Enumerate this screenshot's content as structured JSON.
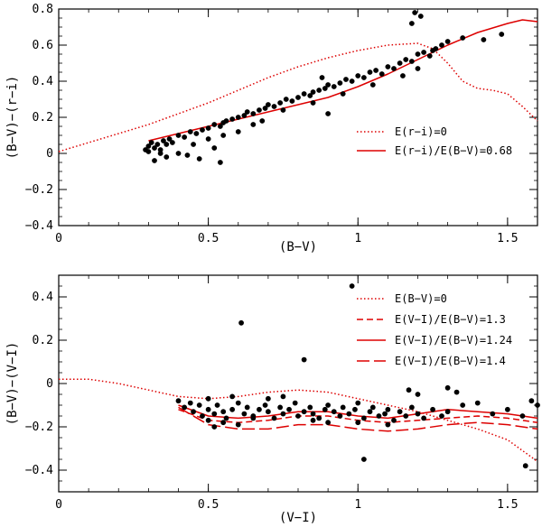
{
  "chart_data": [
    {
      "type": "scatter",
      "xlabel": "(B−V)",
      "ylabel": "(B−V)−(r−i)",
      "xlim": [
        0,
        1.6
      ],
      "ylim": [
        -0.4,
        0.8
      ],
      "xticks": [
        0,
        0.5,
        1,
        1.5
      ],
      "xtick_labels": [
        "0",
        "0.5",
        "1",
        "1.5"
      ],
      "yticks": [
        -0.4,
        -0.2,
        0,
        0.2,
        0.4,
        0.6,
        0.8
      ],
      "ytick_labels": [
        "−0.4",
        "−0.2",
        "0",
        "0.2",
        "0.4",
        "0.6",
        "0.8"
      ],
      "legend_position": "right",
      "series": [
        {
          "name": "E(r−i)=0",
          "style": "dotted",
          "color": "#dd0000",
          "x": [
            0.0,
            0.1,
            0.2,
            0.3,
            0.4,
            0.5,
            0.6,
            0.7,
            0.8,
            0.9,
            1.0,
            1.1,
            1.2,
            1.25,
            1.3,
            1.35,
            1.4,
            1.45,
            1.5,
            1.55,
            1.6
          ],
          "y": [
            0.01,
            0.06,
            0.11,
            0.16,
            0.22,
            0.28,
            0.35,
            0.42,
            0.48,
            0.53,
            0.57,
            0.6,
            0.61,
            0.58,
            0.5,
            0.4,
            0.36,
            0.35,
            0.33,
            0.26,
            0.18
          ]
        },
        {
          "name": "E(r−i)/E(B−V)=0.68",
          "style": "solid",
          "color": "#dd0000",
          "x": [
            0.3,
            0.4,
            0.5,
            0.6,
            0.7,
            0.8,
            0.9,
            1.0,
            1.1,
            1.2,
            1.3,
            1.4,
            1.5,
            1.55,
            1.6
          ],
          "y": [
            0.07,
            0.11,
            0.15,
            0.19,
            0.23,
            0.27,
            0.31,
            0.37,
            0.44,
            0.52,
            0.6,
            0.67,
            0.72,
            0.74,
            0.73
          ]
        },
        {
          "name": "stars",
          "style": "points",
          "color": "#000000",
          "x": [
            0.29,
            0.3,
            0.3,
            0.31,
            0.32,
            0.33,
            0.34,
            0.35,
            0.36,
            0.37,
            0.38,
            0.4,
            0.42,
            0.44,
            0.46,
            0.48,
            0.5,
            0.52,
            0.54,
            0.55,
            0.56,
            0.58,
            0.6,
            0.62,
            0.63,
            0.65,
            0.67,
            0.69,
            0.7,
            0.72,
            0.74,
            0.76,
            0.78,
            0.8,
            0.82,
            0.84,
            0.85,
            0.87,
            0.89,
            0.9,
            0.92,
            0.94,
            0.96,
            0.98,
            1.0,
            1.02,
            1.04,
            1.06,
            1.08,
            1.1,
            1.12,
            1.14,
            1.16,
            1.18,
            1.2,
            1.22,
            1.24,
            1.26,
            1.28,
            1.3,
            1.35,
            1.42,
            1.48,
            0.32,
            0.36,
            0.4,
            0.45,
            0.5,
            0.55,
            0.6,
            0.65,
            0.75,
            0.85,
            0.95,
            1.05,
            1.15,
            1.2,
            0.34,
            0.43,
            0.52,
            0.47,
            0.54,
            0.68,
            0.9,
            0.88,
            1.21,
            1.18,
            1.19,
            1.25
          ],
          "y": [
            0.02,
            0.04,
            0.01,
            0.06,
            0.03,
            0.05,
            0.02,
            0.07,
            0.05,
            0.08,
            0.06,
            0.1,
            0.09,
            0.12,
            0.11,
            0.13,
            0.14,
            0.16,
            0.15,
            0.17,
            0.18,
            0.19,
            0.2,
            0.21,
            0.23,
            0.22,
            0.24,
            0.25,
            0.27,
            0.26,
            0.28,
            0.3,
            0.29,
            0.31,
            0.33,
            0.32,
            0.34,
            0.35,
            0.36,
            0.38,
            0.37,
            0.39,
            0.41,
            0.4,
            0.43,
            0.42,
            0.45,
            0.46,
            0.44,
            0.48,
            0.47,
            0.5,
            0.52,
            0.51,
            0.55,
            0.56,
            0.54,
            0.58,
            0.6,
            0.62,
            0.64,
            0.63,
            0.66,
            -0.04,
            -0.02,
            0.0,
            0.05,
            0.08,
            0.1,
            0.12,
            0.16,
            0.24,
            0.28,
            0.33,
            0.38,
            0.43,
            0.47,
            0.0,
            -0.01,
            0.03,
            -0.03,
            -0.05,
            0.18,
            0.22,
            0.42,
            0.76,
            0.72,
            0.78,
            0.57
          ]
        }
      ]
    },
    {
      "type": "scatter",
      "xlabel": "(V−I)",
      "ylabel": "(B−V)−(V−I)",
      "xlim": [
        0,
        1.6
      ],
      "ylim": [
        -0.5,
        0.5
      ],
      "xticks": [
        0,
        0.5,
        1,
        1.5
      ],
      "xtick_labels": [
        "0",
        "0.5",
        "1",
        "1.5"
      ],
      "yticks": [
        -0.4,
        -0.2,
        0,
        0.2,
        0.4
      ],
      "ytick_labels": [
        "−0.4",
        "−0.2",
        "0",
        "0.2",
        "0.4"
      ],
      "legend_position": "top-right",
      "series": [
        {
          "name": "E(B−V)=0",
          "style": "dotted",
          "color": "#dd0000",
          "x": [
            0.0,
            0.1,
            0.2,
            0.3,
            0.4,
            0.5,
            0.6,
            0.7,
            0.8,
            0.9,
            1.0,
            1.1,
            1.2,
            1.3,
            1.4,
            1.5,
            1.6
          ],
          "y": [
            0.02,
            0.02,
            0.0,
            -0.03,
            -0.06,
            -0.07,
            -0.06,
            -0.04,
            -0.03,
            -0.04,
            -0.07,
            -0.1,
            -0.13,
            -0.17,
            -0.21,
            -0.26,
            -0.36
          ]
        },
        {
          "name": "E(V−I)/E(B−V)=1.3",
          "style": "dashed",
          "color": "#dd0000",
          "x": [
            0.4,
            0.5,
            0.6,
            0.7,
            0.8,
            0.9,
            1.0,
            1.1,
            1.2,
            1.3,
            1.4,
            1.5,
            1.6
          ],
          "y": [
            -0.12,
            -0.17,
            -0.18,
            -0.17,
            -0.15,
            -0.15,
            -0.17,
            -0.18,
            -0.17,
            -0.16,
            -0.15,
            -0.16,
            -0.18
          ]
        },
        {
          "name": "E(V−I)/E(B−V)=1.24",
          "style": "solid",
          "color": "#dd0000",
          "x": [
            0.4,
            0.5,
            0.6,
            0.7,
            0.8,
            0.9,
            1.0,
            1.1,
            1.2,
            1.3,
            1.4,
            1.5,
            1.6
          ],
          "y": [
            -0.1,
            -0.15,
            -0.16,
            -0.15,
            -0.13,
            -0.13,
            -0.15,
            -0.16,
            -0.14,
            -0.12,
            -0.13,
            -0.14,
            -0.16
          ]
        },
        {
          "name": "E(V−I)/E(B−V)=1.4",
          "style": "longdash",
          "color": "#dd0000",
          "x": [
            0.4,
            0.5,
            0.6,
            0.7,
            0.8,
            0.9,
            1.0,
            1.1,
            1.2,
            1.3,
            1.4,
            1.5,
            1.6
          ],
          "y": [
            -0.11,
            -0.19,
            -0.21,
            -0.21,
            -0.19,
            -0.19,
            -0.21,
            -0.22,
            -0.21,
            -0.19,
            -0.18,
            -0.19,
            -0.21
          ]
        },
        {
          "name": "stars",
          "style": "points",
          "color": "#000000",
          "x": [
            0.4,
            0.42,
            0.44,
            0.45,
            0.47,
            0.48,
            0.5,
            0.52,
            0.53,
            0.55,
            0.56,
            0.58,
            0.6,
            0.62,
            0.63,
            0.65,
            0.67,
            0.69,
            0.7,
            0.72,
            0.74,
            0.75,
            0.77,
            0.79,
            0.8,
            0.82,
            0.84,
            0.85,
            0.87,
            0.89,
            0.9,
            0.92,
            0.94,
            0.95,
            0.97,
            0.99,
            1.0,
            1.02,
            1.04,
            1.05,
            1.07,
            1.09,
            1.1,
            1.12,
            1.14,
            1.16,
            1.18,
            1.2,
            1.22,
            1.25,
            1.28,
            1.3,
            1.35,
            1.4,
            1.45,
            1.5,
            1.55,
            1.6,
            0.5,
            0.55,
            0.6,
            0.65,
            0.7,
            0.75,
            0.85,
            0.9,
            1.0,
            1.1,
            0.52,
            0.58,
            0.61,
            0.98,
            0.82,
            1.2,
            1.3,
            1.17,
            1.02,
            1.33,
            1.58,
            1.56,
            0.5
          ],
          "y": [
            -0.08,
            -0.11,
            -0.09,
            -0.13,
            -0.1,
            -0.15,
            -0.12,
            -0.14,
            -0.1,
            -0.13,
            -0.16,
            -0.12,
            -0.09,
            -0.14,
            -0.11,
            -0.15,
            -0.12,
            -0.1,
            -0.13,
            -0.16,
            -0.11,
            -0.14,
            -0.12,
            -0.09,
            -0.15,
            -0.13,
            -0.11,
            -0.14,
            -0.16,
            -0.12,
            -0.1,
            -0.13,
            -0.15,
            -0.11,
            -0.14,
            -0.12,
            -0.09,
            -0.16,
            -0.13,
            -0.11,
            -0.15,
            -0.14,
            -0.12,
            -0.17,
            -0.13,
            -0.15,
            -0.11,
            -0.14,
            -0.16,
            -0.12,
            -0.15,
            -0.13,
            -0.1,
            -0.09,
            -0.14,
            -0.12,
            -0.15,
            -0.1,
            -0.17,
            -0.18,
            -0.19,
            -0.16,
            -0.07,
            -0.06,
            -0.17,
            -0.18,
            -0.18,
            -0.19,
            -0.2,
            -0.06,
            0.28,
            0.45,
            0.11,
            -0.05,
            -0.02,
            -0.03,
            -0.35,
            -0.04,
            -0.08,
            -0.38,
            -0.07
          ]
        }
      ]
    }
  ]
}
